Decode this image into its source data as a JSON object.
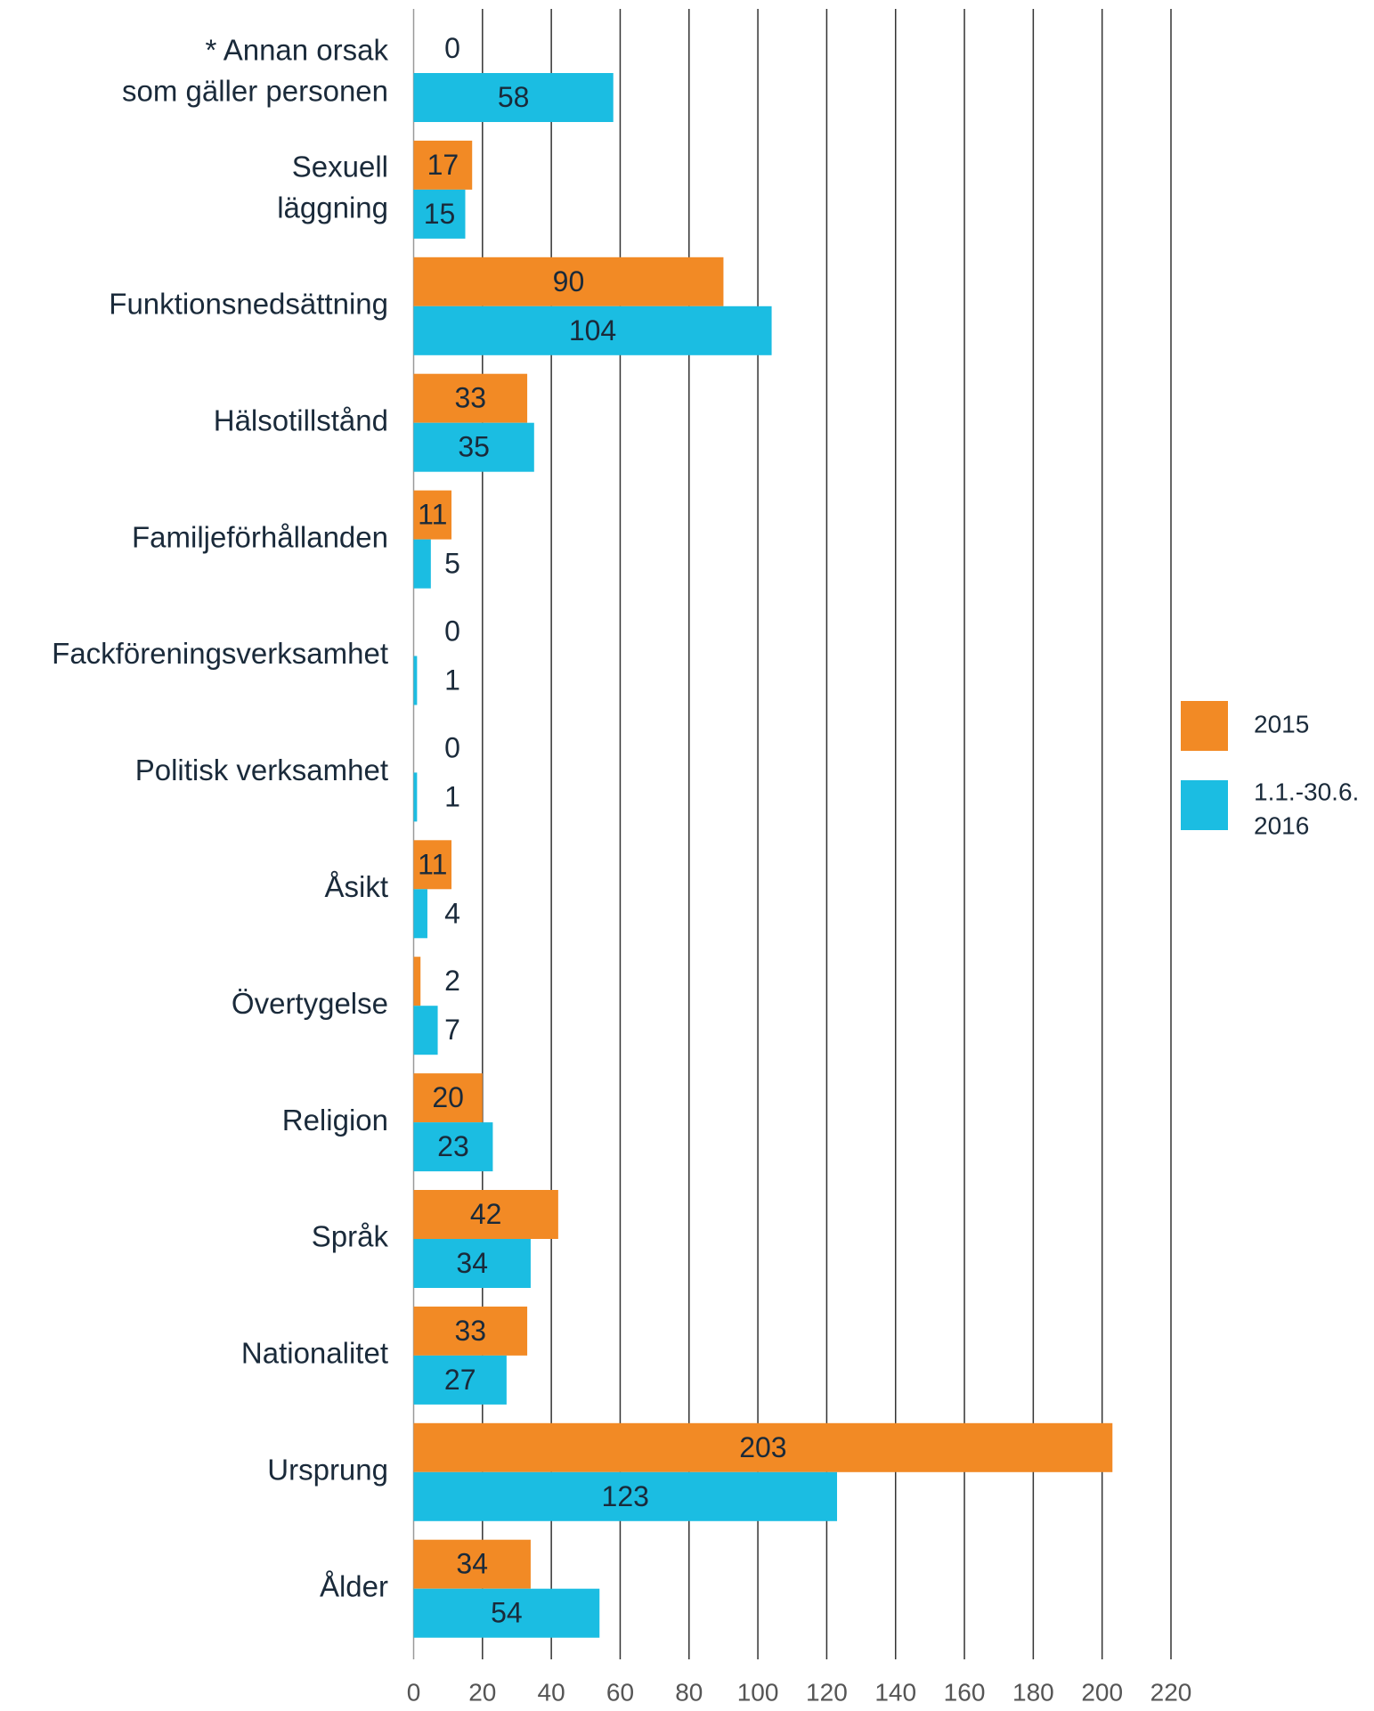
{
  "chart_data": {
    "type": "barh",
    "categories": [
      [
        "* Annan orsak",
        "som gäller personen"
      ],
      [
        "Sexuell",
        "läggning"
      ],
      [
        "Funktionsnedsättning"
      ],
      [
        "Hälsotillstånd"
      ],
      [
        "Familjeförhållanden"
      ],
      [
        "Fackföreningsverksamhet"
      ],
      [
        "Politisk verksamhet"
      ],
      [
        "Åsikt"
      ],
      [
        "Övertygelse"
      ],
      [
        "Religion"
      ],
      [
        "Språk"
      ],
      [
        "Nationalitet"
      ],
      [
        "Ursprung"
      ],
      [
        "Ålder"
      ]
    ],
    "series": [
      {
        "name": [
          "2015"
        ],
        "color": "#f28a25",
        "values": [
          0,
          17,
          90,
          33,
          11,
          0,
          0,
          11,
          2,
          20,
          42,
          33,
          203,
          34
        ]
      },
      {
        "name": [
          "1.1.-30.6.",
          "2016"
        ],
        "color": "#1bbde2",
        "values": [
          58,
          15,
          104,
          35,
          5,
          1,
          1,
          4,
          7,
          23,
          34,
          27,
          123,
          54
        ]
      }
    ],
    "xlim": [
      0,
      220
    ],
    "xticks": [
      0,
      20,
      40,
      60,
      80,
      100,
      120,
      140,
      160,
      180,
      200,
      220
    ],
    "grid": true,
    "legend": "right"
  }
}
